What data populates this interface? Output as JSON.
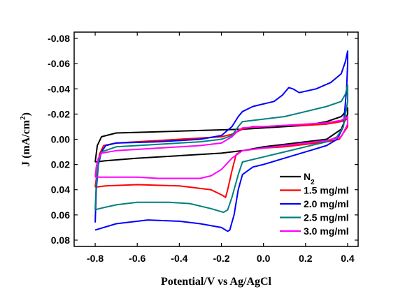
{
  "chart_data": {
    "type": "line",
    "xlabel": "Potential/V vs Ag/AgCl",
    "ylabel_main": "J (mA/cm",
    "ylabel_sup": "2",
    "ylabel_end": ")",
    "xlim": [
      -0.9,
      0.45
    ],
    "ylim": [
      0.085,
      -0.085
    ],
    "y_inverted": true,
    "x_ticks": [
      -0.8,
      -0.6,
      -0.4,
      -0.2,
      0.0,
      0.2,
      0.4
    ],
    "x_tick_labels": [
      "-0.8",
      "-0.6",
      "-0.4",
      "-0.2",
      "0.0",
      "0.2",
      "0.4"
    ],
    "y_ticks": [
      -0.08,
      -0.06,
      -0.04,
      -0.02,
      0.0,
      0.02,
      0.04,
      0.06,
      0.08
    ],
    "y_tick_labels": [
      "-0.08",
      "-0.06",
      "-0.04",
      "-0.02",
      "0.00",
      "0.02",
      "0.04",
      "0.06",
      "0.08"
    ],
    "grid": false,
    "legend_position": "bottom-right",
    "series": [
      {
        "name": "N",
        "name_sub": "2",
        "color": "#000000",
        "points": [
          [
            -0.8,
            0.018
          ],
          [
            -0.79,
            0.005
          ],
          [
            -0.77,
            -0.002
          ],
          [
            -0.7,
            -0.005
          ],
          [
            -0.5,
            -0.006
          ],
          [
            -0.3,
            -0.007
          ],
          [
            -0.1,
            -0.008
          ],
          [
            0.0,
            -0.009
          ],
          [
            0.1,
            -0.01
          ],
          [
            0.2,
            -0.011
          ],
          [
            0.3,
            -0.014
          ],
          [
            0.37,
            -0.018
          ],
          [
            0.39,
            -0.022
          ],
          [
            0.4,
            -0.025
          ],
          [
            0.4,
            -0.02
          ],
          [
            0.37,
            -0.008
          ],
          [
            0.3,
            0.0
          ],
          [
            0.2,
            0.002
          ],
          [
            0.1,
            0.004
          ],
          [
            0.0,
            0.006
          ],
          [
            -0.1,
            0.009
          ],
          [
            -0.2,
            0.011
          ],
          [
            -0.4,
            0.013
          ],
          [
            -0.6,
            0.015
          ],
          [
            -0.75,
            0.017
          ],
          [
            -0.8,
            0.018
          ]
        ]
      },
      {
        "name": "1.5 mg/ml",
        "color": "#ff0000",
        "points": [
          [
            -0.8,
            0.038
          ],
          [
            -0.79,
            0.025
          ],
          [
            -0.78,
            0.012
          ],
          [
            -0.76,
            0.005
          ],
          [
            -0.7,
            0.003
          ],
          [
            -0.5,
            0.001
          ],
          [
            -0.3,
            -0.001
          ],
          [
            -0.2,
            -0.002
          ],
          [
            -0.15,
            -0.004
          ],
          [
            -0.1,
            -0.008
          ],
          [
            -0.05,
            -0.01
          ],
          [
            0.0,
            -0.01
          ],
          [
            0.1,
            -0.011
          ],
          [
            0.2,
            -0.011
          ],
          [
            0.3,
            -0.012
          ],
          [
            0.37,
            -0.014
          ],
          [
            0.4,
            -0.016
          ],
          [
            0.4,
            -0.01
          ],
          [
            0.36,
            0.0
          ],
          [
            0.3,
            0.002
          ],
          [
            0.2,
            0.004
          ],
          [
            0.1,
            0.006
          ],
          [
            0.0,
            0.007
          ],
          [
            -0.1,
            0.009
          ],
          [
            -0.13,
            0.012
          ],
          [
            -0.15,
            0.025
          ],
          [
            -0.17,
            0.04
          ],
          [
            -0.18,
            0.046
          ],
          [
            -0.2,
            0.044
          ],
          [
            -0.25,
            0.04
          ],
          [
            -0.4,
            0.037
          ],
          [
            -0.6,
            0.036
          ],
          [
            -0.75,
            0.037
          ],
          [
            -0.8,
            0.038
          ]
        ]
      },
      {
        "name": "2.0 mg/ml",
        "color": "#0000ff",
        "points": [
          [
            -0.8,
            0.066
          ],
          [
            -0.795,
            0.04
          ],
          [
            -0.785,
            0.02
          ],
          [
            -0.77,
            0.01
          ],
          [
            -0.75,
            0.005
          ],
          [
            -0.7,
            0.003
          ],
          [
            -0.5,
            0.002
          ],
          [
            -0.3,
            0.0
          ],
          [
            -0.2,
            -0.003
          ],
          [
            -0.15,
            -0.01
          ],
          [
            -0.12,
            -0.018
          ],
          [
            -0.1,
            -0.022
          ],
          [
            -0.05,
            -0.026
          ],
          [
            0.0,
            -0.028
          ],
          [
            0.05,
            -0.03
          ],
          [
            0.09,
            -0.035
          ],
          [
            0.12,
            -0.041
          ],
          [
            0.14,
            -0.04
          ],
          [
            0.17,
            -0.037
          ],
          [
            0.25,
            -0.04
          ],
          [
            0.32,
            -0.045
          ],
          [
            0.37,
            -0.052
          ],
          [
            0.39,
            -0.062
          ],
          [
            0.4,
            -0.07
          ],
          [
            0.4,
            -0.06
          ],
          [
            0.395,
            -0.04
          ],
          [
            0.38,
            -0.01
          ],
          [
            0.35,
            0.0
          ],
          [
            0.3,
            0.005
          ],
          [
            0.2,
            0.01
          ],
          [
            0.1,
            0.015
          ],
          [
            0.0,
            0.02
          ],
          [
            -0.05,
            0.022
          ],
          [
            -0.1,
            0.028
          ],
          [
            -0.12,
            0.04
          ],
          [
            -0.14,
            0.06
          ],
          [
            -0.16,
            0.072
          ],
          [
            -0.17,
            0.073
          ],
          [
            -0.2,
            0.07
          ],
          [
            -0.3,
            0.067
          ],
          [
            -0.4,
            0.065
          ],
          [
            -0.55,
            0.064
          ],
          [
            -0.7,
            0.067
          ],
          [
            -0.78,
            0.071
          ],
          [
            -0.8,
            0.072
          ]
        ]
      },
      {
        "name": "2.5 mg/ml",
        "color": "#008080",
        "points": [
          [
            -0.8,
            0.056
          ],
          [
            -0.795,
            0.035
          ],
          [
            -0.785,
            0.018
          ],
          [
            -0.77,
            0.01
          ],
          [
            -0.7,
            0.006
          ],
          [
            -0.5,
            0.004
          ],
          [
            -0.3,
            0.002
          ],
          [
            -0.2,
            0.0
          ],
          [
            -0.15,
            -0.003
          ],
          [
            -0.12,
            -0.01
          ],
          [
            -0.1,
            -0.014
          ],
          [
            0.0,
            -0.016
          ],
          [
            0.1,
            -0.018
          ],
          [
            0.2,
            -0.022
          ],
          [
            0.3,
            -0.026
          ],
          [
            0.37,
            -0.03
          ],
          [
            0.39,
            -0.036
          ],
          [
            0.4,
            -0.043
          ],
          [
            0.4,
            -0.03
          ],
          [
            0.38,
            -0.01
          ],
          [
            0.35,
            -0.002
          ],
          [
            0.3,
            0.002
          ],
          [
            0.2,
            0.006
          ],
          [
            0.1,
            0.01
          ],
          [
            0.0,
            0.014
          ],
          [
            -0.1,
            0.018
          ],
          [
            -0.12,
            0.028
          ],
          [
            -0.15,
            0.046
          ],
          [
            -0.17,
            0.056
          ],
          [
            -0.19,
            0.058
          ],
          [
            -0.25,
            0.055
          ],
          [
            -0.35,
            0.051
          ],
          [
            -0.45,
            0.05
          ],
          [
            -0.6,
            0.05
          ],
          [
            -0.7,
            0.052
          ],
          [
            -0.78,
            0.055
          ],
          [
            -0.8,
            0.056
          ]
        ]
      },
      {
        "name": "3.0 mg/ml",
        "color": "#ff00ff",
        "points": [
          [
            -0.8,
            0.03
          ],
          [
            -0.795,
            0.022
          ],
          [
            -0.785,
            0.015
          ],
          [
            -0.77,
            0.011
          ],
          [
            -0.7,
            0.009
          ],
          [
            -0.5,
            0.007
          ],
          [
            -0.3,
            0.005
          ],
          [
            -0.2,
            0.003
          ],
          [
            -0.15,
            -0.002
          ],
          [
            -0.12,
            -0.007
          ],
          [
            -0.1,
            -0.009
          ],
          [
            0.0,
            -0.01
          ],
          [
            0.1,
            -0.011
          ],
          [
            0.2,
            -0.012
          ],
          [
            0.3,
            -0.013
          ],
          [
            0.37,
            -0.015
          ],
          [
            0.4,
            -0.018
          ],
          [
            0.4,
            -0.012
          ],
          [
            0.37,
            -0.002
          ],
          [
            0.3,
            0.001
          ],
          [
            0.2,
            0.003
          ],
          [
            0.1,
            0.005
          ],
          [
            0.0,
            0.007
          ],
          [
            -0.1,
            0.009
          ],
          [
            -0.15,
            0.015
          ],
          [
            -0.2,
            0.024
          ],
          [
            -0.25,
            0.029
          ],
          [
            -0.3,
            0.031
          ],
          [
            -0.4,
            0.031
          ],
          [
            -0.5,
            0.031
          ],
          [
            -0.6,
            0.03
          ],
          [
            -0.7,
            0.03
          ],
          [
            -0.78,
            0.03
          ],
          [
            -0.8,
            0.03
          ]
        ]
      }
    ]
  }
}
